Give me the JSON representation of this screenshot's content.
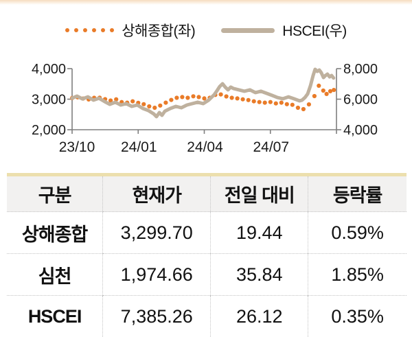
{
  "accent": {
    "top_border": "#F6DCBF",
    "table_top_bar": "#ECDFAD",
    "axis_color": "#7F7F7F",
    "text_color": "#1a1a1a"
  },
  "chart_data": {
    "type": "line",
    "title": "",
    "grid": false,
    "legend_position": "top",
    "x_unit": "months from 2023-10",
    "x_range": [
      0,
      12
    ],
    "x_ticks": [
      {
        "m": 0,
        "label": "23/10"
      },
      {
        "m": 3,
        "label": "24/01"
      },
      {
        "m": 6,
        "label": "24/04"
      },
      {
        "m": 9,
        "label": "24/07"
      },
      {
        "m": 12,
        "label": ""
      }
    ],
    "y_left": {
      "range": [
        2000,
        4000
      ],
      "ticks": [
        {
          "v": 4000,
          "label": "4,000"
        },
        {
          "v": 3000,
          "label": "3,000"
        },
        {
          "v": 2000,
          "label": "2,000"
        }
      ]
    },
    "y_right": {
      "range": [
        4000,
        8000
      ],
      "ticks": [
        {
          "v": 8000,
          "label": "8,000"
        },
        {
          "v": 6000,
          "label": "6,000"
        },
        {
          "v": 4000,
          "label": "4,000"
        }
      ]
    },
    "series": [
      {
        "name": "상해종합(좌)",
        "axis": "left",
        "style": "dots",
        "color": "#E97B28",
        "points": [
          [
            0.0,
            3035
          ],
          [
            0.25,
            3060
          ],
          [
            0.5,
            3020
          ],
          [
            0.75,
            2990
          ],
          [
            1.0,
            3045
          ],
          [
            1.25,
            3050
          ],
          [
            1.5,
            3000
          ],
          [
            1.75,
            2955
          ],
          [
            2.0,
            2995
          ],
          [
            2.25,
            2905
          ],
          [
            2.5,
            2885
          ],
          [
            2.75,
            2930
          ],
          [
            3.0,
            2880
          ],
          [
            3.25,
            2835
          ],
          [
            3.5,
            2765
          ],
          [
            3.75,
            2720
          ],
          [
            4.0,
            2790
          ],
          [
            4.25,
            2885
          ],
          [
            4.5,
            2975
          ],
          [
            4.75,
            3045
          ],
          [
            5.0,
            3070
          ],
          [
            5.25,
            3045
          ],
          [
            5.5,
            3095
          ],
          [
            5.75,
            3070
          ],
          [
            6.0,
            3025
          ],
          [
            6.25,
            3045
          ],
          [
            6.5,
            3140
          ],
          [
            6.75,
            3155
          ],
          [
            7.0,
            3090
          ],
          [
            7.25,
            3045
          ],
          [
            7.5,
            3025
          ],
          [
            7.75,
            2995
          ],
          [
            8.0,
            2970
          ],
          [
            8.25,
            2930
          ],
          [
            8.5,
            2905
          ],
          [
            8.75,
            2885
          ],
          [
            9.0,
            2905
          ],
          [
            9.25,
            2860
          ],
          [
            9.5,
            2885
          ],
          [
            9.75,
            2835
          ],
          [
            10.0,
            2815
          ],
          [
            10.25,
            2720
          ],
          [
            10.5,
            2675
          ],
          [
            10.75,
            2830
          ],
          [
            11.0,
            3100
          ],
          [
            11.2,
            3440
          ],
          [
            11.4,
            3280
          ],
          [
            11.55,
            3170
          ],
          [
            11.72,
            3260
          ],
          [
            11.88,
            3300
          ]
        ]
      },
      {
        "name": "HSCEI(우)",
        "axis": "right",
        "style": "line",
        "color": "#BFB19E",
        "points": [
          [
            0.0,
            6065
          ],
          [
            0.22,
            6200
          ],
          [
            0.47,
            6020
          ],
          [
            0.72,
            6155
          ],
          [
            0.97,
            5935
          ],
          [
            1.22,
            6065
          ],
          [
            1.47,
            5845
          ],
          [
            1.71,
            5665
          ],
          [
            1.96,
            5800
          ],
          [
            2.21,
            5620
          ],
          [
            2.46,
            5710
          ],
          [
            2.71,
            5530
          ],
          [
            2.96,
            5620
          ],
          [
            3.21,
            5395
          ],
          [
            3.46,
            5260
          ],
          [
            3.71,
            5035
          ],
          [
            3.83,
            4855
          ],
          [
            3.96,
            5125
          ],
          [
            4.08,
            4945
          ],
          [
            4.21,
            5215
          ],
          [
            4.46,
            5395
          ],
          [
            4.71,
            5530
          ],
          [
            4.96,
            5440
          ],
          [
            5.21,
            5620
          ],
          [
            5.45,
            5710
          ],
          [
            5.7,
            5800
          ],
          [
            5.95,
            5710
          ],
          [
            6.2,
            5935
          ],
          [
            6.45,
            6290
          ],
          [
            6.58,
            6560
          ],
          [
            6.7,
            6830
          ],
          [
            6.83,
            7010
          ],
          [
            6.95,
            6790
          ],
          [
            7.08,
            6610
          ],
          [
            7.2,
            6790
          ],
          [
            7.32,
            6700
          ],
          [
            7.57,
            6610
          ],
          [
            7.82,
            6520
          ],
          [
            8.07,
            6610
          ],
          [
            8.32,
            6430
          ],
          [
            8.57,
            6520
          ],
          [
            8.82,
            6385
          ],
          [
            9.07,
            6250
          ],
          [
            9.32,
            6110
          ],
          [
            9.57,
            6025
          ],
          [
            9.82,
            6155
          ],
          [
            10.07,
            6025
          ],
          [
            10.32,
            5890
          ],
          [
            10.44,
            5935
          ],
          [
            10.57,
            6110
          ],
          [
            10.69,
            6340
          ],
          [
            10.82,
            6875
          ],
          [
            10.94,
            7550
          ],
          [
            11.03,
            7955
          ],
          [
            11.13,
            7820
          ],
          [
            11.22,
            7910
          ],
          [
            11.31,
            7730
          ],
          [
            11.41,
            7415
          ],
          [
            11.5,
            7550
          ],
          [
            11.59,
            7640
          ],
          [
            11.69,
            7460
          ],
          [
            11.78,
            7550
          ],
          [
            11.87,
            7385
          ]
        ]
      }
    ]
  },
  "table": {
    "columns": [
      "구분",
      "현재가",
      "전일 대비",
      "등락률"
    ],
    "rows": [
      [
        "상해종합",
        "3,299.70",
        "19.44",
        "0.59%"
      ],
      [
        "심천",
        "1,974.66",
        "35.84",
        "1.85%"
      ],
      [
        "HSCEI",
        "7,385.26",
        "26.12",
        "0.35%"
      ]
    ]
  }
}
